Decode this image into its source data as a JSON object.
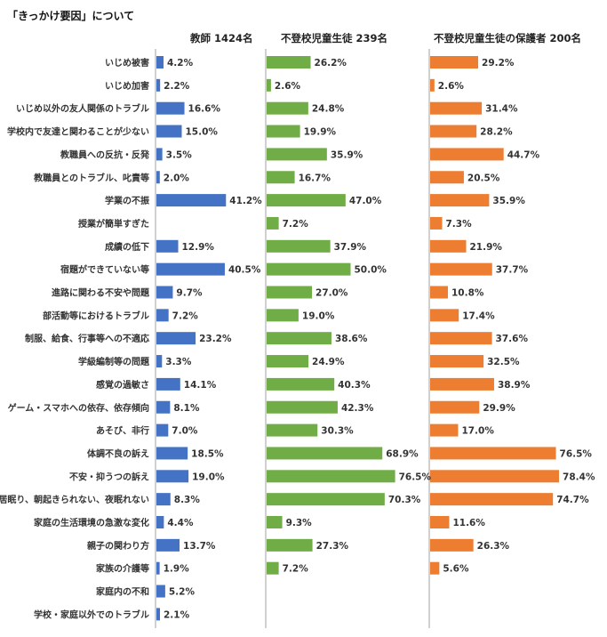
{
  "title": "「きっかけ要因」について",
  "chart_data": {
    "type": "bar",
    "orientation": "horizontal",
    "categories": [
      "いじめ被害",
      "いじめ加害",
      "いじめ以外の友人関係のトラブル",
      "学校内で友達と関わることが少ない",
      "教職員への反抗・反発",
      "教職員とのトラブル、叱責等",
      "学業の不振",
      "授業が簡単すぎた",
      "成績の低下",
      "宿題ができていない等",
      "進路に関わる不安や問題",
      "部活動等におけるトラブル",
      "制服、給食、行事等への不適応",
      "学級編制等の問題",
      "感覚の過敏さ",
      "ゲーム・スマホへの依存、依存傾向",
      "あそび、非行",
      "体調不良の訴え",
      "不安・抑うつの訴え",
      "居眠り、朝起きられない、夜眠れない",
      "家庭の生活環境の急激な変化",
      "親子の関わり方",
      "家族の介護等",
      "家庭内の不和",
      "学校・家庭以外でのトラブル"
    ],
    "series": [
      {
        "name": "教師 1424名",
        "color": "#4472c4",
        "values": [
          4.2,
          2.2,
          16.6,
          15.0,
          3.5,
          2.0,
          41.2,
          null,
          12.9,
          40.5,
          9.7,
          7.2,
          23.2,
          3.3,
          14.1,
          8.1,
          7.0,
          18.5,
          19.0,
          8.3,
          4.4,
          13.7,
          1.9,
          5.2,
          2.1
        ],
        "labels": [
          "4.2%",
          "2.2%",
          "16.6%",
          "15.0%",
          "3.5%",
          "2.0%",
          "41.2%",
          "",
          "12.9%",
          "40.5%",
          "9.7%",
          "7.2%",
          "23.2%",
          "3.3%",
          "14.1%",
          "8.1%",
          "7.0%",
          "18.5%",
          "19.0%",
          "8.3%",
          "4.4%",
          "13.7%",
          "1.9%",
          "5.2%",
          "2.1%"
        ]
      },
      {
        "name": "不登校児童生徒 239名",
        "color": "#70ad47",
        "values": [
          26.2,
          2.6,
          24.8,
          19.9,
          35.9,
          16.7,
          47.0,
          7.2,
          37.9,
          50.0,
          27.0,
          19.0,
          38.6,
          24.9,
          40.3,
          42.3,
          30.3,
          68.9,
          76.5,
          70.3,
          9.3,
          27.3,
          7.2,
          null,
          null
        ],
        "labels": [
          "26.2%",
          "2.6%",
          "24.8%",
          "19.9%",
          "35.9%",
          "16.7%",
          "47.0%",
          "7.2%",
          "37.9%",
          "50.0%",
          "27.0%",
          "19.0%",
          "38.6%",
          "24.9%",
          "40.3%",
          "42.3%",
          "30.3%",
          "68.9%",
          "76.5%",
          "70.3%",
          "9.3%",
          "27.3%",
          "7.2%",
          "",
          ""
        ]
      },
      {
        "name": "不登校児童生徒の保護者 200名",
        "color": "#ed7d31",
        "values": [
          29.2,
          2.6,
          31.4,
          28.2,
          44.7,
          20.5,
          35.9,
          7.3,
          21.9,
          37.7,
          10.8,
          17.4,
          37.6,
          32.5,
          38.9,
          29.9,
          17.0,
          76.5,
          78.4,
          74.7,
          11.6,
          26.3,
          5.6,
          null,
          null
        ],
        "labels": [
          "29.2%",
          "2.6%",
          "31.4%",
          "28.2%",
          "44.7%",
          "20.5%",
          "35.9%",
          "7.3%",
          "21.9%",
          "37.7%",
          "10.8%",
          "17.4%",
          "37.6%",
          "32.5%",
          "38.9%",
          "29.9%",
          "17.0%",
          "76.5%",
          "78.4%",
          "74.7%",
          "11.6%",
          "26.3%",
          "5.6%",
          "",
          ""
        ]
      }
    ],
    "grid": false,
    "legend": "none"
  }
}
